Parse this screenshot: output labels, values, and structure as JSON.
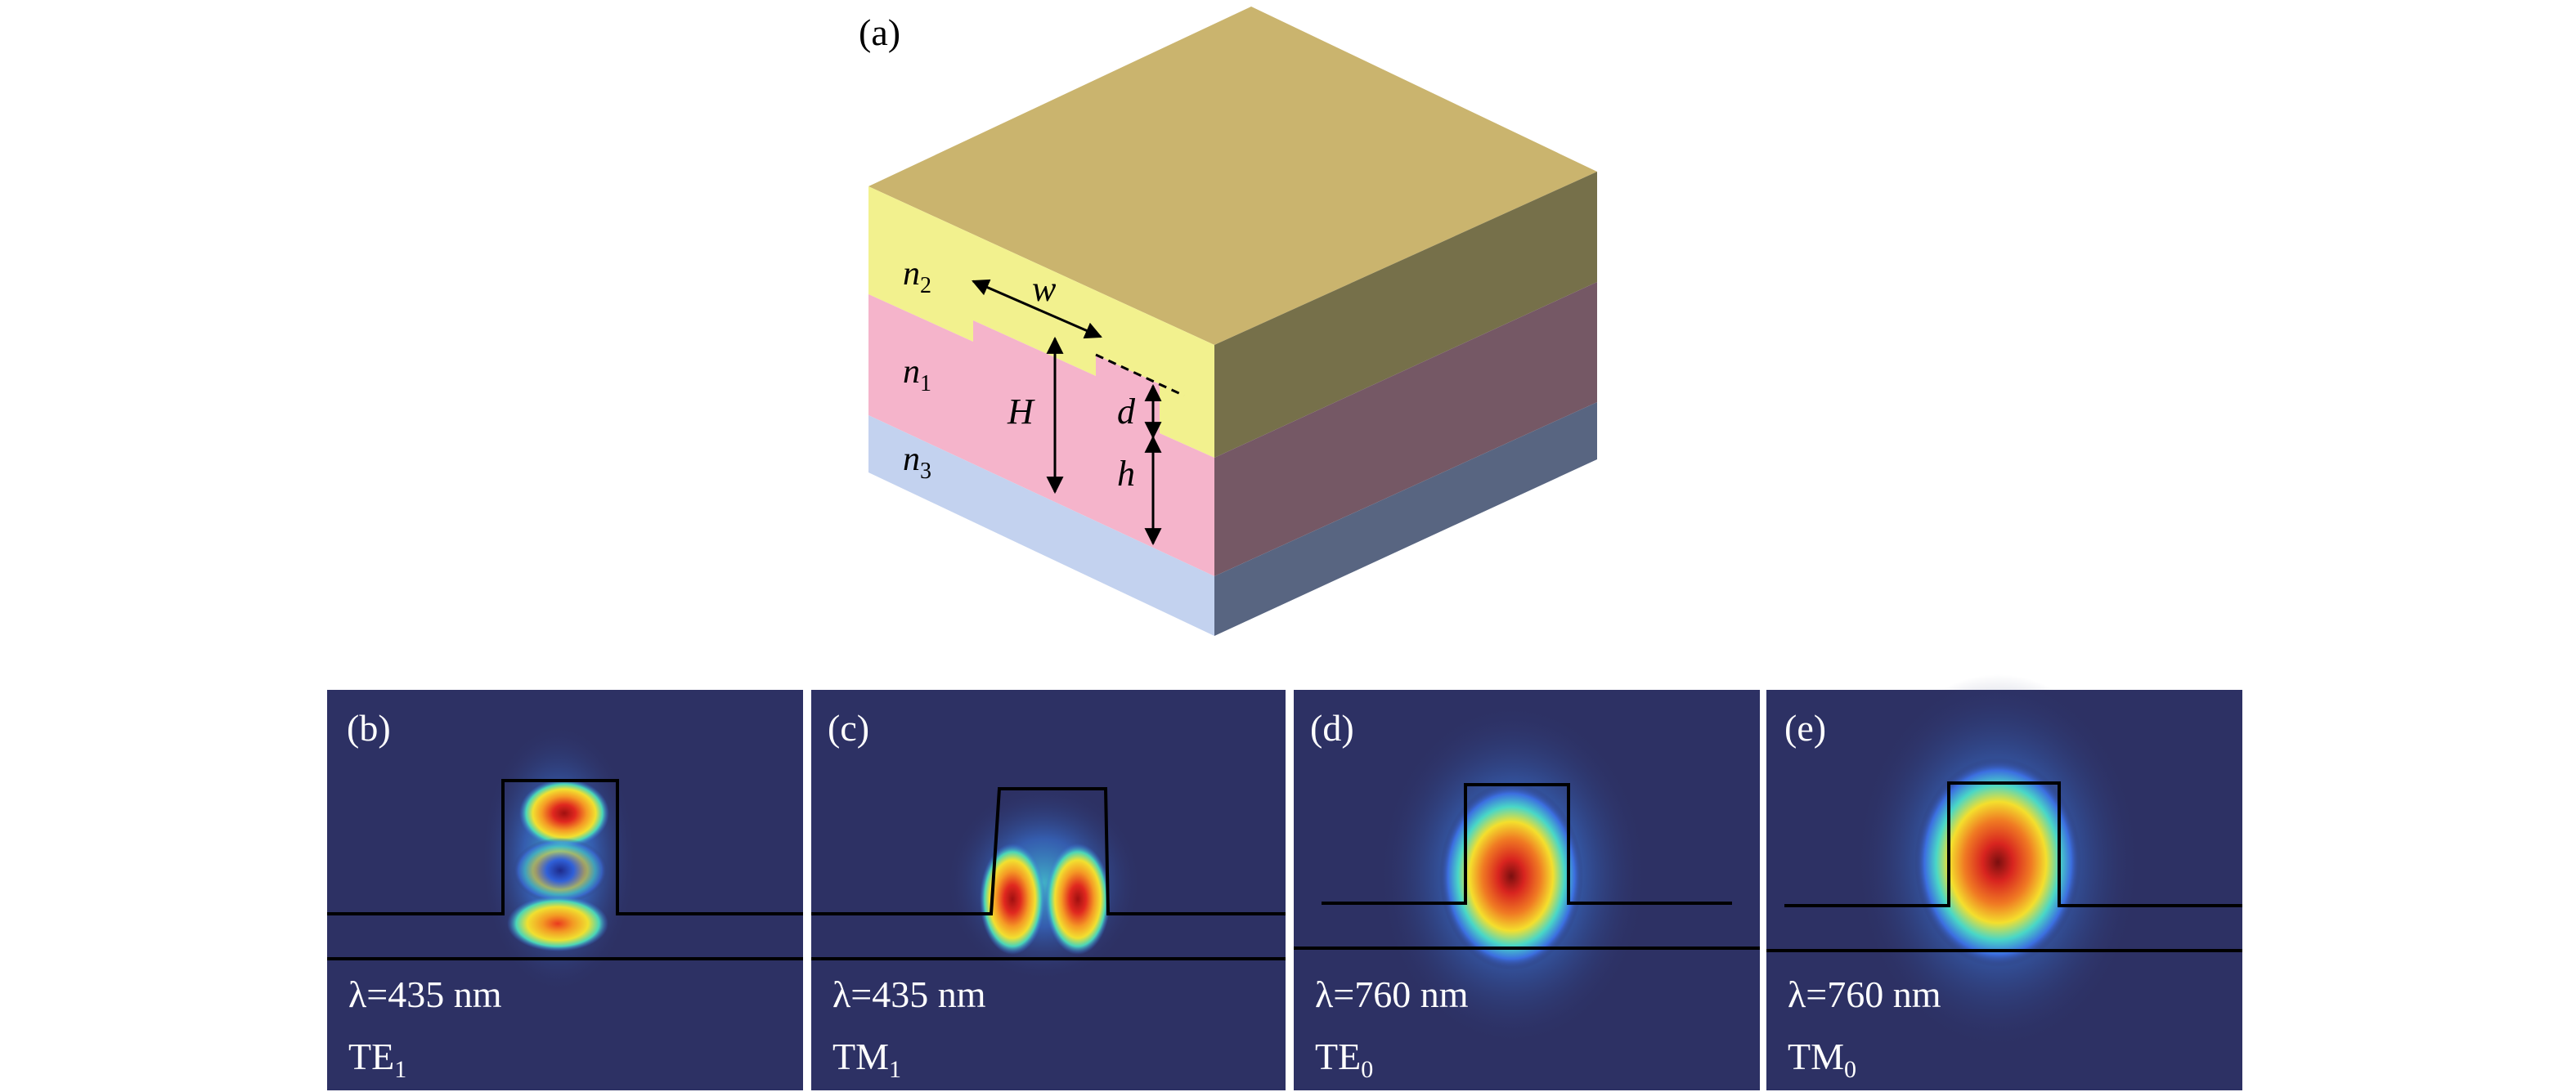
{
  "panel_a": {
    "label": "(a)",
    "layer_labels": {
      "n2": "n",
      "n2_sub": "2",
      "n1": "n",
      "n1_sub": "1",
      "n3": "n",
      "n3_sub": "3"
    },
    "dim_labels": {
      "w": "w",
      "H": "H",
      "d": "d",
      "h": "h"
    },
    "colors": {
      "top_face": "#CAB46E",
      "cladding": "#F2F18E",
      "core": "#F5B4CB",
      "substrate": "#C3D2EF",
      "cladding_side": "#76704A",
      "core_side": "#755865",
      "substrate_side": "#586581"
    }
  },
  "mode_panels": [
    {
      "label": "(b)",
      "wavelength": "λ=435 nm",
      "mode": "TE",
      "mode_sub": "1",
      "pattern": "three-lobe-vertical"
    },
    {
      "label": "(c)",
      "wavelength": "λ=435 nm",
      "mode": "TM",
      "mode_sub": "1",
      "pattern": "two-lobe-horizontal"
    },
    {
      "label": "(d)",
      "wavelength": "λ=760 nm",
      "mode": "TE",
      "mode_sub": "0",
      "pattern": "single-lobe"
    },
    {
      "label": "(e)",
      "wavelength": "λ=760 nm",
      "mode": "TM",
      "mode_sub": "0",
      "pattern": "single-lobe"
    }
  ],
  "colormap": {
    "background": "#2D3164",
    "low": "#3c6ee0",
    "mid": "#49d7c7",
    "high_mid": "#f4df2d",
    "high": "#d8241f",
    "peak": "#7a0f0f"
  }
}
